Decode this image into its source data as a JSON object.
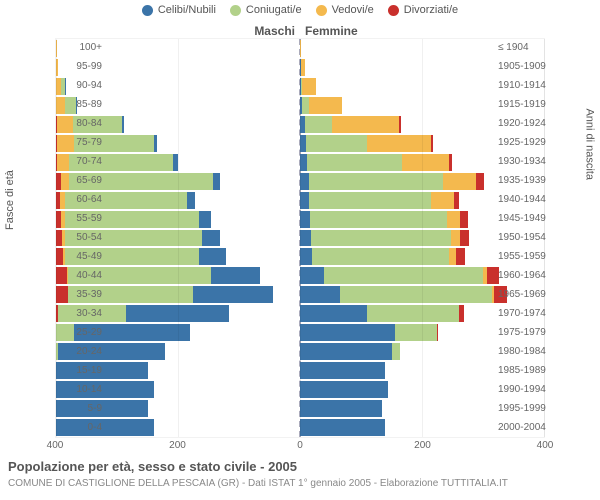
{
  "legend": [
    {
      "label": "Celibi/Nubili",
      "color": "#3b74a8"
    },
    {
      "label": "Coniugati/e",
      "color": "#b2d18a"
    },
    {
      "label": "Vedovi/e",
      "color": "#f4b94e"
    },
    {
      "label": "Divorziati/e",
      "color": "#c9302c"
    }
  ],
  "side_labels": {
    "left": "Maschi",
    "right": "Femmine"
  },
  "yaxis_titles": {
    "left": "Fasce di età",
    "right": "Anni di nascita"
  },
  "footer_title": "Popolazione per età, sesso e stato civile - 2005",
  "footer_sub": "COMUNE DI CASTIGLIONE DELLA PESCAIA (GR) - Dati ISTAT 1° gennaio 2005 - Elaborazione TUTTITALIA.IT",
  "x_axis": {
    "max": 400,
    "ticks": [
      400,
      200,
      0,
      200,
      400
    ]
  },
  "plot": {
    "background": "#ffffff",
    "grid_color": "rgba(0,0,0,0.06)",
    "center_line_color": "#aab"
  },
  "age_bands": [
    {
      "age": "100+",
      "birth": "≤ 1904",
      "m": {
        "c": 0,
        "m": 0,
        "w": 1,
        "d": 0
      },
      "f": {
        "c": 0,
        "m": 0,
        "w": 2,
        "d": 0
      }
    },
    {
      "age": "95-99",
      "birth": "1905-1909",
      "m": {
        "c": 0,
        "m": 0,
        "w": 3,
        "d": 0
      },
      "f": {
        "c": 1,
        "m": 0,
        "w": 8,
        "d": 0
      }
    },
    {
      "age": "90-94",
      "birth": "1910-1914",
      "m": {
        "c": 1,
        "m": 6,
        "w": 8,
        "d": 0
      },
      "f": {
        "c": 2,
        "m": 2,
        "w": 22,
        "d": 0
      }
    },
    {
      "age": "85-89",
      "birth": "1915-1919",
      "m": {
        "c": 2,
        "m": 18,
        "w": 15,
        "d": 0
      },
      "f": {
        "c": 4,
        "m": 10,
        "w": 55,
        "d": 0
      }
    },
    {
      "age": "80-84",
      "birth": "1920-1924",
      "m": {
        "c": 4,
        "m": 80,
        "w": 26,
        "d": 2
      },
      "f": {
        "c": 8,
        "m": 45,
        "w": 110,
        "d": 2
      }
    },
    {
      "age": "75-79",
      "birth": "1925-1929",
      "m": {
        "c": 6,
        "m": 130,
        "w": 28,
        "d": 2
      },
      "f": {
        "c": 10,
        "m": 100,
        "w": 105,
        "d": 3
      }
    },
    {
      "age": "70-74",
      "birth": "1930-1934",
      "m": {
        "c": 8,
        "m": 170,
        "w": 20,
        "d": 2
      },
      "f": {
        "c": 12,
        "m": 155,
        "w": 78,
        "d": 4
      }
    },
    {
      "age": "65-69",
      "birth": "1935-1939",
      "m": {
        "c": 12,
        "m": 235,
        "w": 14,
        "d": 8
      },
      "f": {
        "c": 14,
        "m": 220,
        "w": 55,
        "d": 12
      }
    },
    {
      "age": "60-64",
      "birth": "1940-1944",
      "m": {
        "c": 14,
        "m": 200,
        "w": 8,
        "d": 6
      },
      "f": {
        "c": 14,
        "m": 200,
        "w": 38,
        "d": 8
      }
    },
    {
      "age": "55-59",
      "birth": "1945-1949",
      "m": {
        "c": 20,
        "m": 220,
        "w": 6,
        "d": 8
      },
      "f": {
        "c": 16,
        "m": 225,
        "w": 22,
        "d": 12
      }
    },
    {
      "age": "50-54",
      "birth": "1950-1954",
      "m": {
        "c": 30,
        "m": 225,
        "w": 4,
        "d": 10
      },
      "f": {
        "c": 18,
        "m": 230,
        "w": 14,
        "d": 15
      }
    },
    {
      "age": "45-49",
      "birth": "1955-1959",
      "m": {
        "c": 45,
        "m": 220,
        "w": 2,
        "d": 12
      },
      "f": {
        "c": 20,
        "m": 225,
        "w": 10,
        "d": 16
      }
    },
    {
      "age": "40-44",
      "birth": "1960-1964",
      "m": {
        "c": 80,
        "m": 235,
        "w": 1,
        "d": 18
      },
      "f": {
        "c": 40,
        "m": 260,
        "w": 6,
        "d": 20
      }
    },
    {
      "age": "35-39",
      "birth": "1965-1969",
      "m": {
        "c": 130,
        "m": 205,
        "w": 0,
        "d": 20
      },
      "f": {
        "c": 65,
        "m": 250,
        "w": 3,
        "d": 22
      }
    },
    {
      "age": "30-34",
      "birth": "1970-1974",
      "m": {
        "c": 170,
        "m": 110,
        "w": 0,
        "d": 4
      },
      "f": {
        "c": 110,
        "m": 150,
        "w": 1,
        "d": 8
      }
    },
    {
      "age": "25-29",
      "birth": "1975-1979",
      "m": {
        "c": 190,
        "m": 30,
        "w": 0,
        "d": 0
      },
      "f": {
        "c": 155,
        "m": 70,
        "w": 0,
        "d": 2
      }
    },
    {
      "age": "20-24",
      "birth": "1980-1984",
      "m": {
        "c": 175,
        "m": 4,
        "w": 0,
        "d": 0
      },
      "f": {
        "c": 150,
        "m": 14,
        "w": 0,
        "d": 0
      }
    },
    {
      "age": "15-19",
      "birth": "1985-1989",
      "m": {
        "c": 150,
        "m": 0,
        "w": 0,
        "d": 0
      },
      "f": {
        "c": 140,
        "m": 0,
        "w": 0,
        "d": 0
      }
    },
    {
      "age": "10-14",
      "birth": "1990-1994",
      "m": {
        "c": 160,
        "m": 0,
        "w": 0,
        "d": 0
      },
      "f": {
        "c": 145,
        "m": 0,
        "w": 0,
        "d": 0
      }
    },
    {
      "age": "5-9",
      "birth": "1995-1999",
      "m": {
        "c": 150,
        "m": 0,
        "w": 0,
        "d": 0
      },
      "f": {
        "c": 135,
        "m": 0,
        "w": 0,
        "d": 0
      }
    },
    {
      "age": "0-4",
      "birth": "2000-2004",
      "m": {
        "c": 160,
        "m": 0,
        "w": 0,
        "d": 0
      },
      "f": {
        "c": 140,
        "m": 0,
        "w": 0,
        "d": 0
      }
    }
  ]
}
